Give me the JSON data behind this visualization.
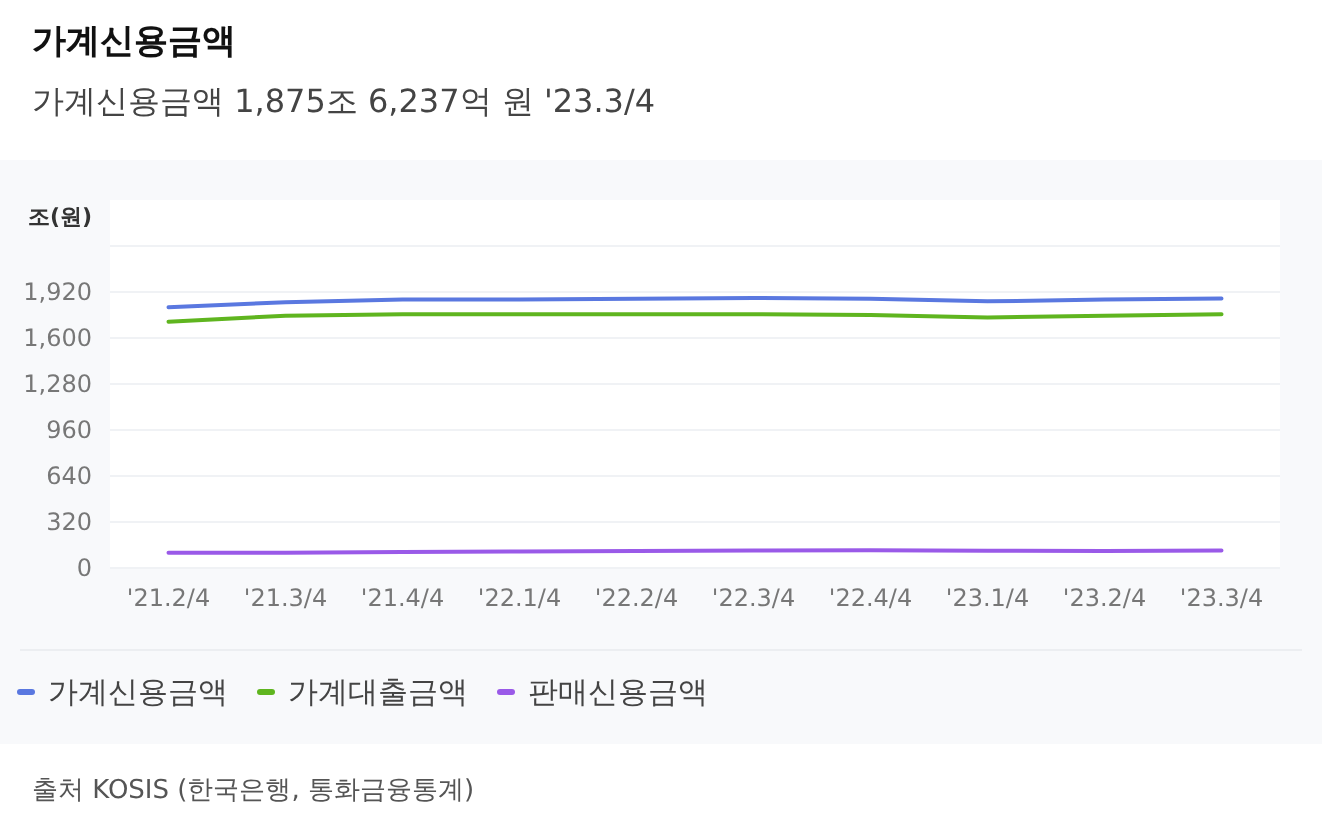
{
  "chart_data": {
    "type": "line",
    "title": "가계신용금액",
    "subtitle": "가계신용금액 1,875조 6,237억 원 '23.3/4",
    "ylabel": "조(원)",
    "categories": [
      "'21.2/4",
      "'21.3/4",
      "'21.4/4",
      "'22.1/4",
      "'22.2/4",
      "'22.3/4",
      "'22.4/4",
      "'23.1/4",
      "'23.2/4",
      "'23.3/4"
    ],
    "series": [
      {
        "name": "가계신용금액",
        "color": "#5a78e0",
        "values": [
          1814,
          1849,
          1867,
          1867,
          1873,
          1879,
          1873,
          1855,
          1867,
          1875
        ]
      },
      {
        "name": "가계대출금액",
        "color": "#5fb51f",
        "values": [
          1713,
          1755,
          1766,
          1766,
          1766,
          1766,
          1760,
          1743,
          1755,
          1766
        ]
      },
      {
        "name": "판매신용금액",
        "color": "#9a5ae8",
        "values": [
          106,
          106,
          112,
          115,
          118,
          122,
          124,
          120,
          119,
          121
        ]
      }
    ],
    "ylim": [
      0,
      2240
    ],
    "yticks": [
      0,
      {
        "value": 320,
        "label": "320"
      },
      {
        "value": 640,
        "label": "640"
      },
      {
        "value": 960,
        "label": "960"
      },
      {
        "value": 1280,
        "label": "1,280"
      },
      {
        "value": 1600,
        "label": "1,600"
      },
      {
        "value": 1920,
        "label": "1,920"
      },
      {
        "value": 2240,
        "label": null
      }
    ],
    "grid": "y",
    "legend": "bottom",
    "line_style": "solid",
    "marker": "none",
    "annotations": [
      "출처 KOSIS (한국은행, 통화금융통계)"
    ]
  }
}
